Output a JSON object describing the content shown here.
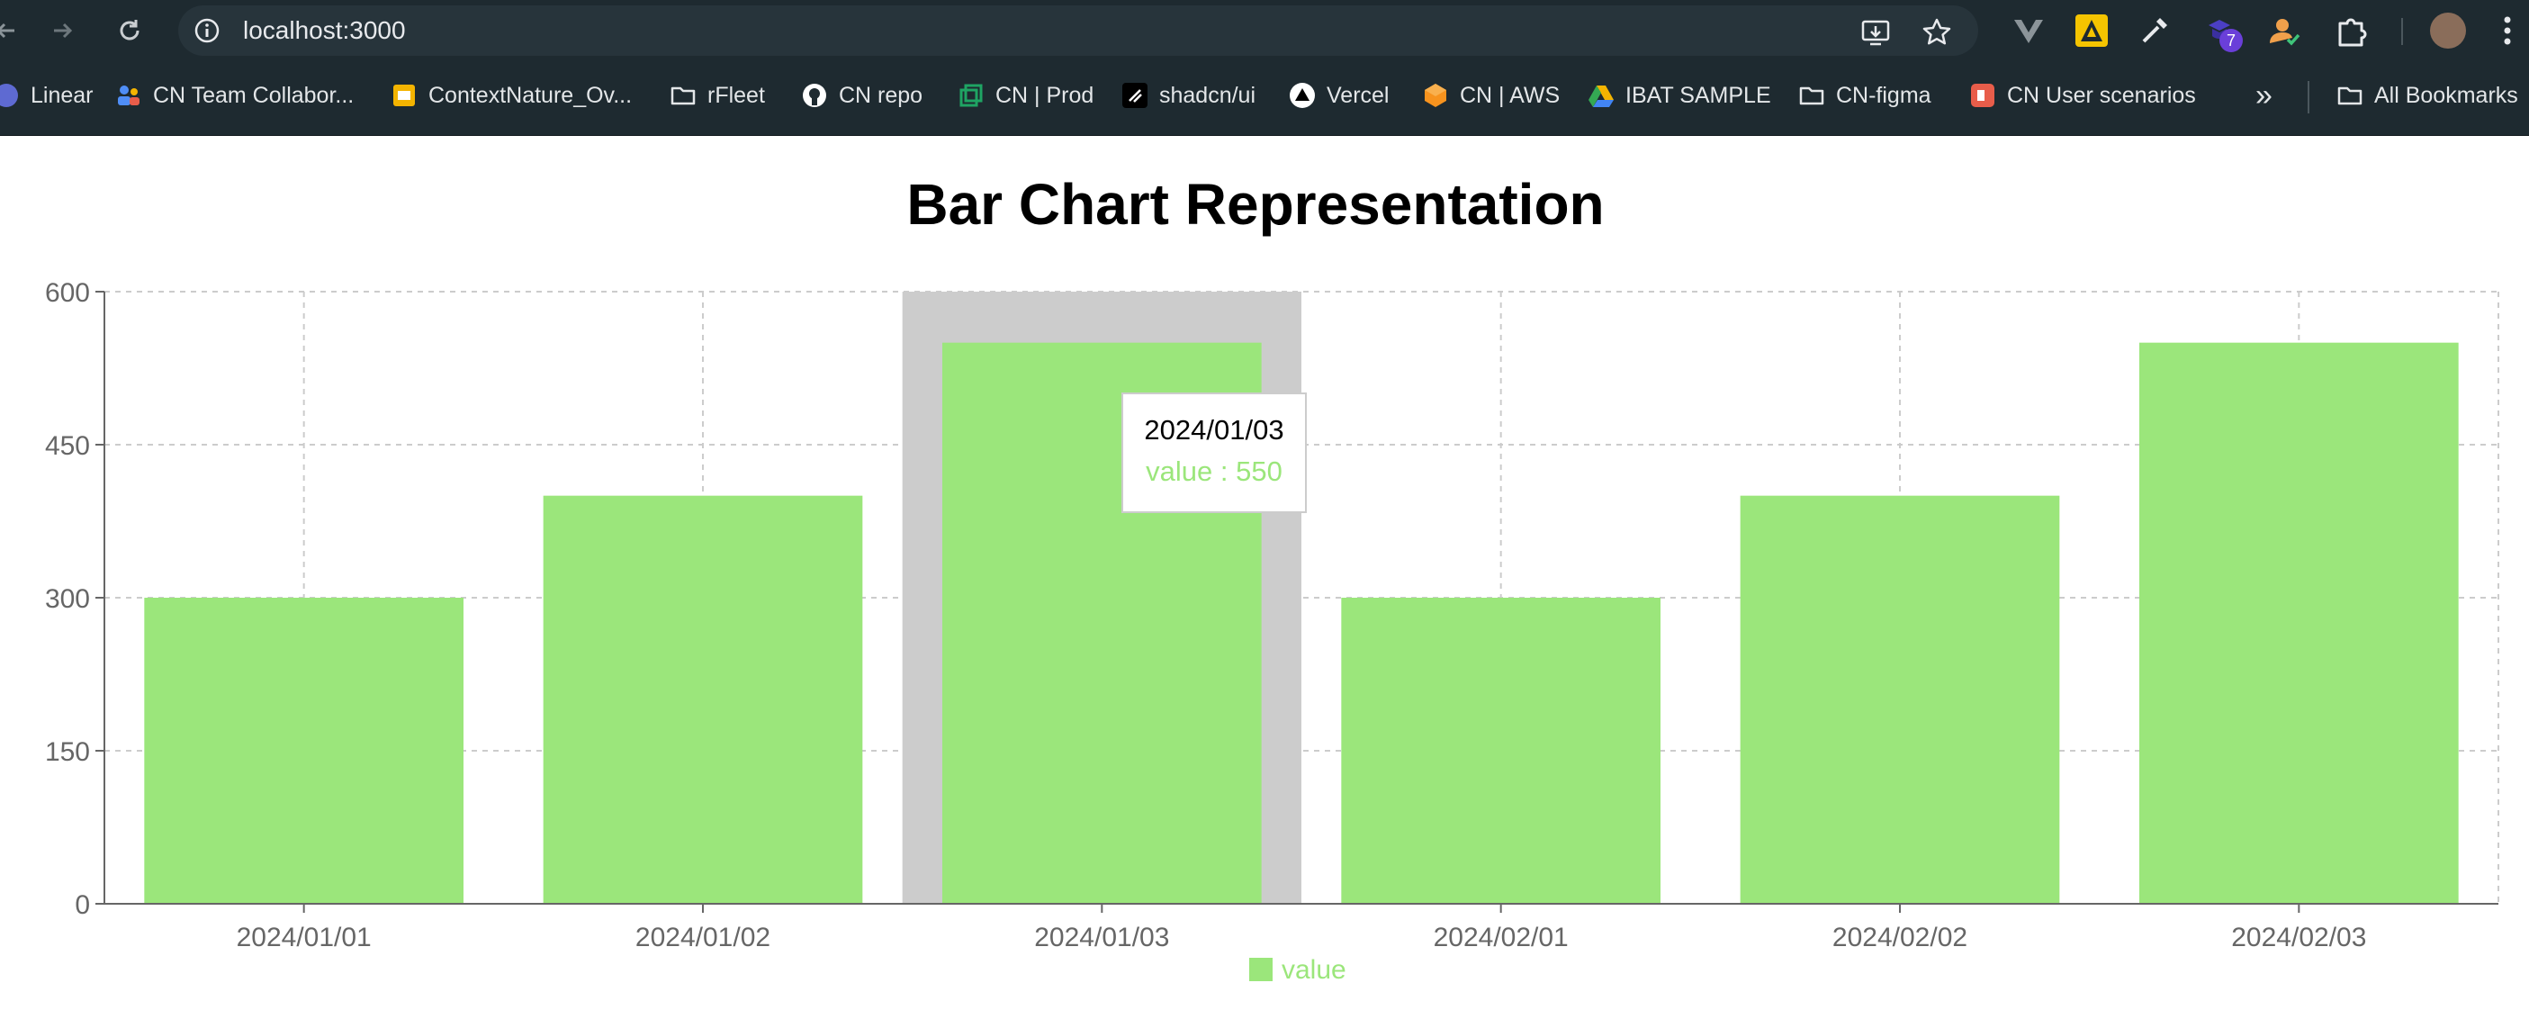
{
  "browser": {
    "url": "localhost:3000",
    "bookmarks": [
      {
        "label": "Linear",
        "icon": "linear-icon",
        "color": "#5e6ad2"
      },
      {
        "label": "CN Team Collabor...",
        "icon": "people-icon",
        "color": "#4f8ef7"
      },
      {
        "label": "ContextNature_Ov...",
        "icon": "slides-icon",
        "color": "#f4b400"
      },
      {
        "label": "rFleet",
        "icon": "folder-icon",
        "color": "#e3e6e8"
      },
      {
        "label": "CN repo",
        "icon": "github-icon",
        "color": "#ffffff"
      },
      {
        "label": "CN | Prod",
        "icon": "copy-icon",
        "color": "#1fa463"
      },
      {
        "label": "shadcn/ui",
        "icon": "shadcn-icon",
        "color": "#ffffff"
      },
      {
        "label": "Vercel",
        "icon": "vercel-icon",
        "color": "#ffffff"
      },
      {
        "label": "CN | AWS",
        "icon": "aws-icon",
        "color": "#f7931e"
      },
      {
        "label": "IBAT SAMPLE",
        "icon": "drive-icon",
        "color": "#34a853"
      },
      {
        "label": "CN-figma",
        "icon": "folder-icon",
        "color": "#e3e6e8"
      },
      {
        "label": "CN User scenarios",
        "icon": "app-icon",
        "color": "#e85d4a"
      }
    ],
    "overflow_label": "»",
    "all_bookmarks_label": "All Bookmarks",
    "extension_badge": "7"
  },
  "chart_data": {
    "type": "bar",
    "title": "Bar Chart Representation",
    "categories": [
      "2024/01/01",
      "2024/01/02",
      "2024/01/03",
      "2024/02/01",
      "2024/02/02",
      "2024/02/03"
    ],
    "series": [
      {
        "name": "value",
        "values": [
          300,
          400,
          550,
          300,
          400,
          550
        ],
        "color": "#9be67b"
      }
    ],
    "ylim": [
      0,
      600
    ],
    "yticks": [
      0,
      150,
      300,
      450,
      600
    ],
    "xlabel": "",
    "ylabel": "",
    "grid": true,
    "grid_style": "dashed",
    "legend_position": "bottom",
    "highlight_color": "#cccccc",
    "active_index": 2,
    "tooltip": {
      "label": "2024/01/03",
      "value_text": "value : 550"
    }
  }
}
